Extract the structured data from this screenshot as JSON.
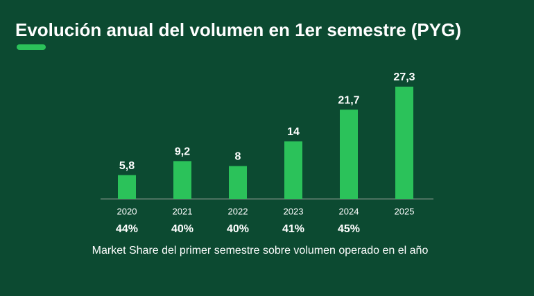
{
  "chart_data": {
    "type": "bar",
    "title": "Evolución anual del volumen en 1er semestre (PYG)",
    "categories": [
      "2020",
      "2021",
      "2022",
      "2023",
      "2024",
      "2025"
    ],
    "values": [
      5.8,
      9.2,
      8,
      14,
      21.7,
      27.3
    ],
    "value_labels": [
      "5,8",
      "9,2",
      "8",
      "14",
      "21,7",
      "27,3"
    ],
    "color": "#2bc25a",
    "market_share": {
      "values": [
        44,
        40,
        40,
        41,
        45,
        null
      ],
      "value_labels": [
        "44%",
        "40%",
        "40%",
        "41%",
        "45%",
        null
      ]
    },
    "note": "Market Share del primer semestre sobre volumen operado en el año"
  }
}
